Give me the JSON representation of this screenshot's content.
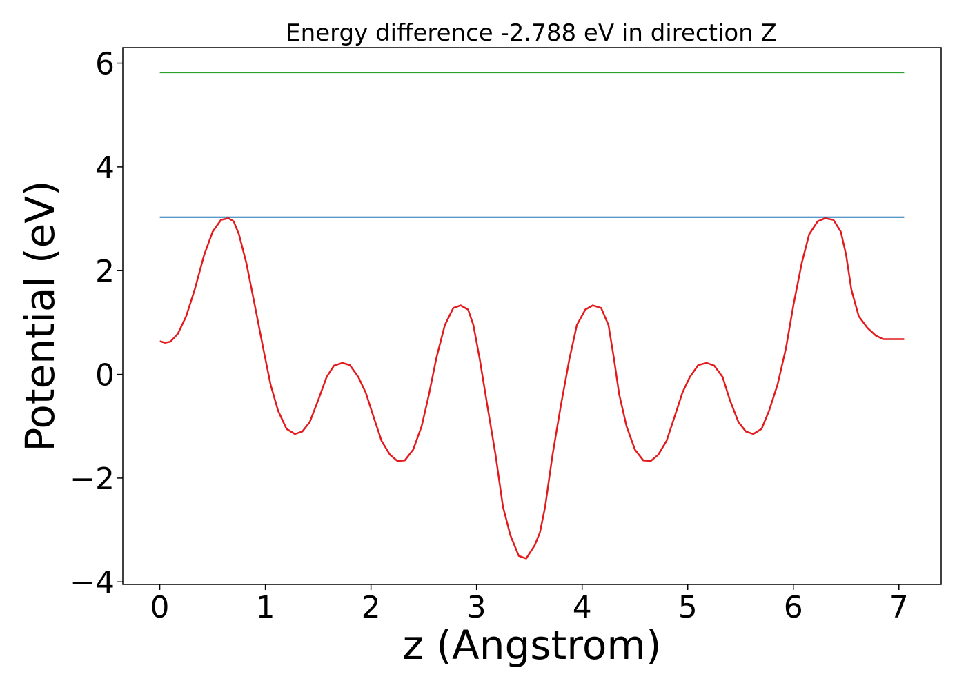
{
  "chart_data": {
    "type": "line",
    "title": "Energy difference -2.788 eV in direction Z",
    "xlabel": "z (Angstrom)",
    "ylabel": "Potential (eV)",
    "xlim": [
      -0.35,
      7.4
    ],
    "ylim": [
      -4.05,
      6.3
    ],
    "xticks": [
      0,
      1,
      2,
      3,
      4,
      5,
      6,
      7
    ],
    "xtick_labels": [
      "0",
      "1",
      "2",
      "3",
      "4",
      "5",
      "6",
      "7"
    ],
    "yticks": [
      -4,
      -2,
      0,
      2,
      4,
      6
    ],
    "ytick_labels": [
      "−4",
      "−2",
      "0",
      "2",
      "4",
      "6"
    ],
    "grid": false,
    "series": [
      {
        "color": "#2ca02c",
        "x": [
          0,
          7.05
        ],
        "y": [
          5.82,
          5.82
        ]
      },
      {
        "color": "#1f77b4",
        "x": [
          0,
          7.05
        ],
        "y": [
          3.03,
          3.03
        ]
      },
      {
        "color": "#e31a1c",
        "x": [
          0,
          0.05,
          0.1,
          0.17,
          0.25,
          0.33,
          0.42,
          0.5,
          0.58,
          0.65,
          0.7,
          0.75,
          0.82,
          0.9,
          0.98,
          1.05,
          1.12,
          1.2,
          1.28,
          1.35,
          1.42,
          1.5,
          1.58,
          1.65,
          1.73,
          1.8,
          1.88,
          1.95,
          2.03,
          2.1,
          2.18,
          2.25,
          2.32,
          2.4,
          2.48,
          2.55,
          2.62,
          2.7,
          2.78,
          2.85,
          2.92,
          2.97,
          3.03,
          3.1,
          3.18,
          3.25,
          3.32,
          3.4,
          3.47,
          3.55,
          3.6,
          3.65,
          3.72,
          3.8,
          3.88,
          3.95,
          4.03,
          4.1,
          4.18,
          4.25,
          4.3,
          4.35,
          4.42,
          4.5,
          4.58,
          4.65,
          4.72,
          4.8,
          4.87,
          4.95,
          5.02,
          5.1,
          5.18,
          5.25,
          5.33,
          5.4,
          5.48,
          5.55,
          5.62,
          5.7,
          5.77,
          5.85,
          5.93,
          6.0,
          6.08,
          6.15,
          6.23,
          6.3,
          6.38,
          6.45,
          6.5,
          6.55,
          6.62,
          6.7,
          6.78,
          6.85,
          6.92,
          7.0,
          7.05
        ],
        "y": [
          0.64,
          0.61,
          0.63,
          0.78,
          1.12,
          1.63,
          2.3,
          2.75,
          2.98,
          3.01,
          2.95,
          2.7,
          2.15,
          1.33,
          0.5,
          -0.2,
          -0.7,
          -1.05,
          -1.15,
          -1.1,
          -0.92,
          -0.5,
          -0.05,
          0.17,
          0.22,
          0.18,
          -0.05,
          -0.35,
          -0.85,
          -1.28,
          -1.55,
          -1.67,
          -1.66,
          -1.45,
          -1.0,
          -0.38,
          0.32,
          0.95,
          1.28,
          1.33,
          1.25,
          0.95,
          0.3,
          -0.58,
          -1.55,
          -2.55,
          -3.1,
          -3.5,
          -3.55,
          -3.3,
          -3.05,
          -2.55,
          -1.55,
          -0.58,
          0.3,
          0.95,
          1.25,
          1.33,
          1.28,
          0.95,
          0.32,
          -0.38,
          -1.0,
          -1.45,
          -1.66,
          -1.67,
          -1.55,
          -1.28,
          -0.85,
          -0.35,
          -0.05,
          0.18,
          0.22,
          0.17,
          -0.05,
          -0.5,
          -0.92,
          -1.1,
          -1.15,
          -1.05,
          -0.7,
          -0.2,
          0.5,
          1.33,
          2.15,
          2.7,
          2.95,
          3.01,
          2.98,
          2.75,
          2.3,
          1.63,
          1.12,
          0.9,
          0.75,
          0.68,
          0.68,
          0.68,
          0.68
        ]
      }
    ]
  }
}
